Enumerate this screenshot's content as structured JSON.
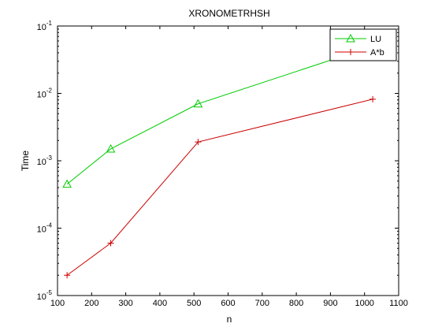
{
  "chart_data": {
    "type": "line",
    "title": "XRONOMETRHSH",
    "xlabel": "n",
    "ylabel": "Time",
    "xlim": [
      100,
      1100
    ],
    "ylim": [
      1e-05,
      0.1
    ],
    "yscale": "log",
    "grid": false,
    "legend_position": "top-right",
    "x_ticks": [
      100,
      200,
      300,
      400,
      500,
      600,
      700,
      800,
      900,
      1000,
      1100
    ],
    "x_tick_labels": [
      "100",
      "200",
      "300",
      "400",
      "500",
      "600",
      "700",
      "800",
      "900",
      "1000",
      "1100"
    ],
    "y_ticks": [
      1e-05,
      0.0001,
      0.001,
      0.01,
      0.1
    ],
    "y_tick_labels": [
      {
        "base": "10",
        "exp": "-5"
      },
      {
        "base": "10",
        "exp": "-4"
      },
      {
        "base": "10",
        "exp": "-3"
      },
      {
        "base": "10",
        "exp": "-2"
      },
      {
        "base": "10",
        "exp": "-1"
      }
    ],
    "series": [
      {
        "name": "LU",
        "color": "#00cc00",
        "marker": "triangle",
        "x": [
          128,
          256,
          512,
          1024
        ],
        "y": [
          0.00045,
          0.0015,
          0.007,
          0.05
        ]
      },
      {
        "name": "A*b",
        "color": "#cc0000",
        "marker": "plus",
        "x": [
          128,
          256,
          512,
          1024
        ],
        "y": [
          2e-05,
          6e-05,
          0.0019,
          0.0082
        ]
      }
    ]
  }
}
